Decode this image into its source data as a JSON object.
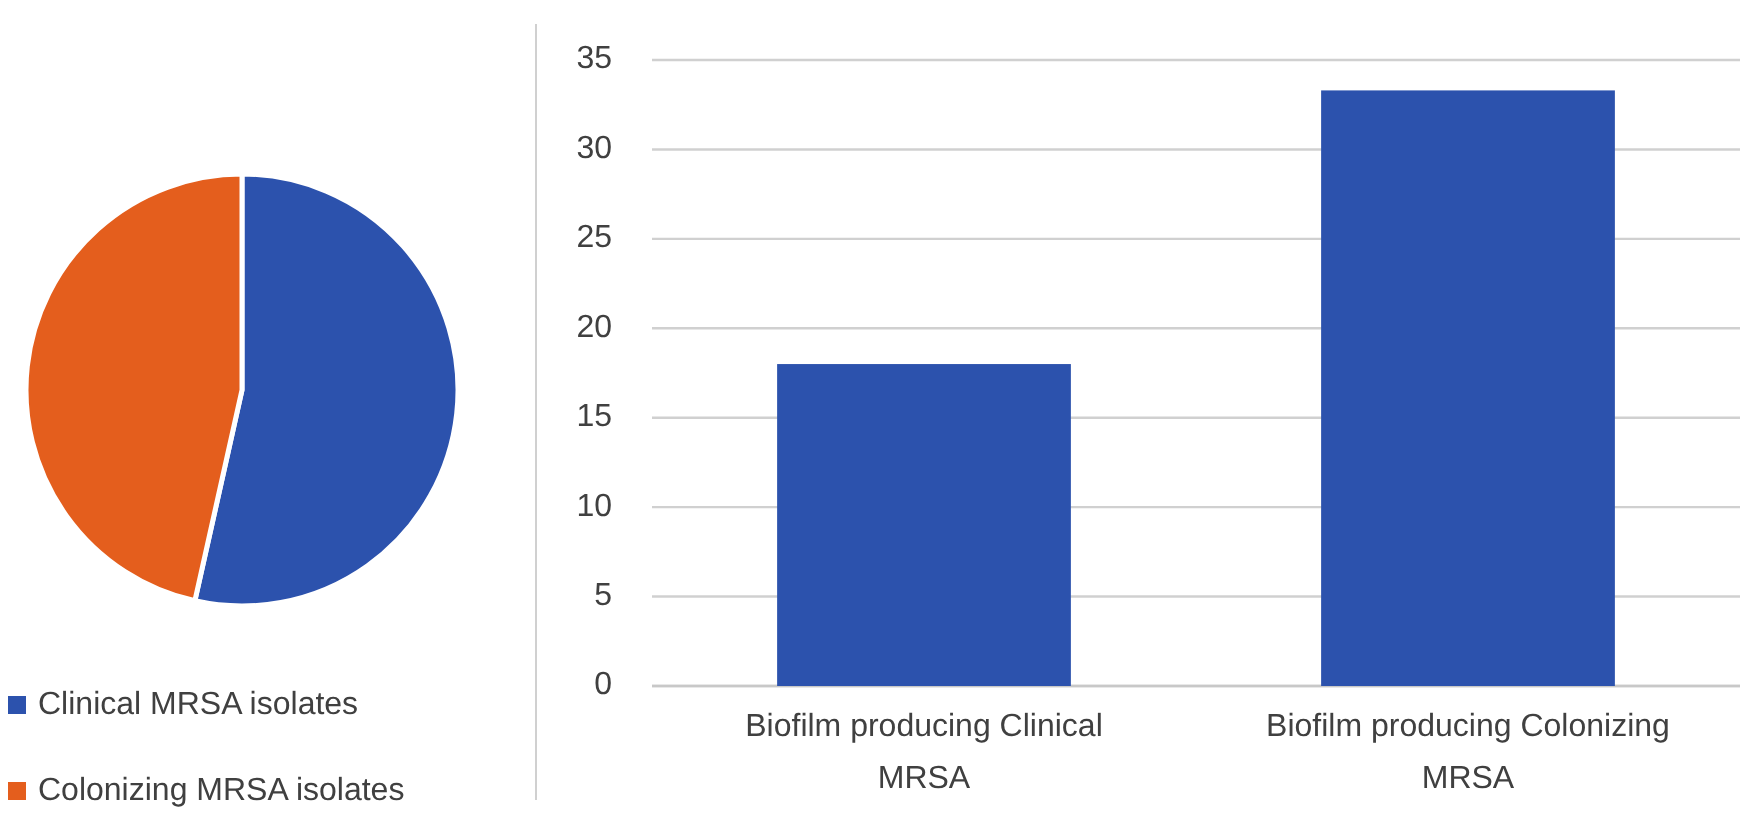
{
  "chart_data": [
    {
      "type": "pie",
      "categories": [
        "Clinical MRSA isolates",
        "Colonizing MRSA isolates"
      ],
      "values": [
        53.5,
        46.5
      ],
      "colors": [
        "#2c52ad",
        "#e45e1d"
      ],
      "legend": "bottom"
    },
    {
      "type": "bar",
      "categories": [
        "Biofilm producing Clinical MRSA",
        "Biofilm producing Colonizing MRSA"
      ],
      "values": [
        18,
        33.3
      ],
      "color": "#2c52ad",
      "ylim": [
        0,
        35
      ],
      "yticks": [
        0,
        5,
        10,
        15,
        20,
        25,
        30,
        35
      ],
      "grid": "y"
    }
  ]
}
